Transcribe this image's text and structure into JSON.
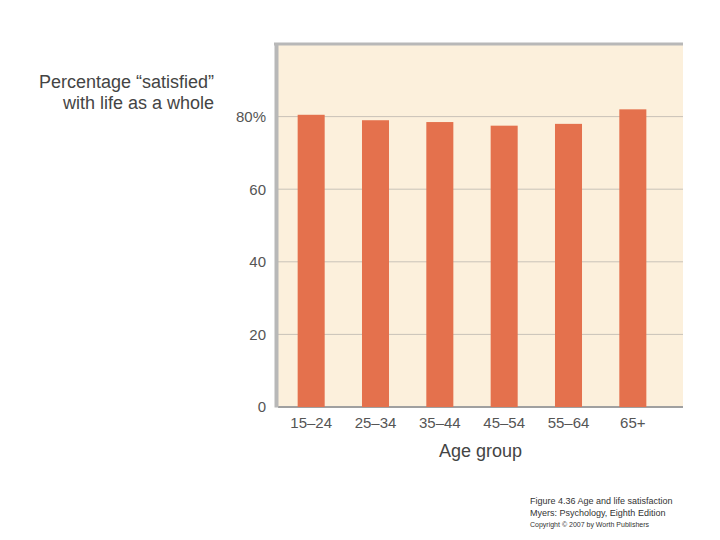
{
  "chart_data": {
    "type": "bar",
    "y_label": [
      "Percentage “satisfied”",
      "with life as a whole"
    ],
    "x_label": "Age group",
    "categories": [
      "15–24",
      "25–34",
      "35–44",
      "45–54",
      "55–64",
      "65+"
    ],
    "values": [
      80.5,
      79,
      78.5,
      77.5,
      78,
      82
    ],
    "color": "#e4714d",
    "ylim": [
      0,
      100
    ],
    "yticks": [
      0,
      20,
      40,
      60,
      {
        "value": 80,
        "label": "80%"
      }
    ],
    "grid": true,
    "caption": [
      "Figure 4.36  Age and life satisfaction",
      "Myers: Psychology, Eighth Edition",
      "Copyright © 2007 by Worth Publishers"
    ]
  }
}
